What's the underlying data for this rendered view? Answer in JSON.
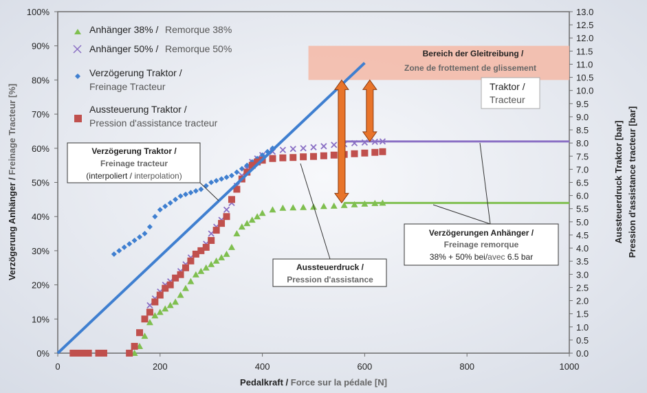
{
  "chart_data": {
    "type": "scatter",
    "x_axis": {
      "title_de": "Pedalkraft",
      "title_fr": "Force sur la pédale [N]",
      "title_sep": "/",
      "range": [
        0,
        1000
      ],
      "ticks": [
        "0",
        "200",
        "400",
        "600",
        "800",
        "1000"
      ]
    },
    "y_left": {
      "title_de": "Verzögerung Anhänger /",
      "title_fr": "Freinage Tracteur [%]",
      "range": [
        0,
        100
      ],
      "ticks": [
        "0%",
        "10%",
        "20%",
        "30%",
        "40%",
        "50%",
        "60%",
        "70%",
        "80%",
        "90%",
        "100%"
      ]
    },
    "y_right": {
      "title_de": "Aussteuerdruck Traktor  [bar]",
      "title_fr": "Pression d'assistance tracteur  [bar]",
      "range": [
        0,
        13
      ],
      "ticks": [
        "0.0",
        "0.5",
        "1.0",
        "1.5",
        "2.0",
        "2.5",
        "3.0",
        "3.5",
        "4.0",
        "4.5",
        "5.0",
        "5.5",
        "6.0",
        "6.5",
        "7.0",
        "7.5",
        "8.0",
        "8.5",
        "9.0",
        "9.5",
        "10.0",
        "10.5",
        "11.0",
        "11.5",
        "12.0",
        "12.5",
        "13.0"
      ]
    },
    "legend": {
      "placement": "top-left",
      "entries": [
        {
          "de": "Anhänger 38% /",
          "fr": "Remorque 38%",
          "color": "#7fbf4f",
          "marker": "triangle"
        },
        {
          "de": "Anhänger 50% /",
          "fr": "Remorque 50%",
          "color": "#8a6fc4",
          "marker": "x"
        },
        {
          "de": "Verzögerung Traktor /",
          "fr": "Freinage Tracteur",
          "color": "#3f7fd0",
          "marker": "diamond"
        },
        {
          "de": "Aussteuerung Traktor /",
          "fr": "Pression d'assistance tracteur",
          "color": "#c0504d",
          "marker": "square"
        }
      ]
    },
    "series": [
      {
        "name": "Anhänger 38% / Remorque 38%",
        "axis": "left",
        "color": "#7fbf4f",
        "marker": "triangle",
        "x": [
          150,
          160,
          170,
          180,
          190,
          200,
          210,
          220,
          230,
          240,
          250,
          260,
          270,
          280,
          290,
          300,
          310,
          320,
          330,
          340,
          350,
          360,
          370,
          380,
          390,
          400,
          420,
          440,
          460,
          480,
          500,
          520,
          540,
          560,
          580,
          600,
          620,
          635
        ],
        "y": [
          0,
          2,
          5,
          9,
          11,
          12,
          13,
          14,
          15,
          17,
          19,
          21,
          23,
          24,
          25,
          26,
          27,
          28,
          29,
          31,
          35,
          37,
          38,
          39,
          40,
          41,
          42,
          42.5,
          42.6,
          42.7,
          42.8,
          43,
          43.1,
          43.3,
          43.5,
          43.7,
          43.9,
          44
        ]
      },
      {
        "name": "Anhänger 50% / Remorque 50%",
        "axis": "left",
        "color": "#8a6fc4",
        "marker": "x",
        "x": [
          140,
          150,
          160,
          170,
          180,
          190,
          200,
          210,
          220,
          230,
          240,
          250,
          260,
          270,
          280,
          290,
          300,
          310,
          320,
          330,
          340,
          350,
          360,
          370,
          380,
          390,
          400,
          420,
          440,
          460,
          480,
          500,
          520,
          540,
          560,
          580,
          600,
          620,
          635
        ],
        "y": [
          0,
          2,
          6,
          10,
          14,
          16,
          18,
          20,
          21,
          22,
          24,
          26,
          28,
          29,
          30,
          32,
          35,
          37,
          39,
          42,
          44,
          49,
          52,
          54,
          56,
          57,
          58,
          59,
          59.5,
          59.8,
          60,
          60.3,
          60.6,
          61,
          61.2,
          61.5,
          61.7,
          61.9,
          62
        ]
      },
      {
        "name": "Verzögerung Traktor / Freinage Tracteur",
        "axis": "left",
        "color": "#3f7fd0",
        "marker": "diamond",
        "x": [
          110,
          120,
          130,
          140,
          150,
          160,
          170,
          180,
          190,
          200,
          210,
          220,
          230,
          240,
          250,
          260,
          270,
          280,
          290,
          300,
          310,
          320,
          330,
          340,
          350,
          360,
          370,
          380,
          390,
          400,
          410,
          420
        ],
        "y": [
          29,
          30,
          31,
          32,
          33,
          34,
          35,
          37,
          40,
          42,
          43,
          44,
          45,
          46,
          46.5,
          47,
          47.5,
          48,
          49,
          50,
          50.5,
          51,
          51.5,
          52,
          53,
          54,
          55,
          56,
          57,
          58,
          59,
          60
        ]
      },
      {
        "name": "Aussteuerung Traktor / Pression d'assistance tracteur",
        "axis": "left",
        "color": "#c0504d",
        "marker": "square",
        "x": [
          30,
          40,
          50,
          60,
          80,
          90,
          140,
          150,
          160,
          170,
          180,
          190,
          200,
          210,
          220,
          230,
          240,
          250,
          260,
          270,
          280,
          290,
          300,
          310,
          320,
          330,
          340,
          350,
          360,
          370,
          380,
          390,
          400,
          420,
          440,
          460,
          480,
          500,
          520,
          540,
          560,
          580,
          600,
          620,
          635
        ],
        "y": [
          0,
          0,
          0,
          0,
          0,
          0,
          0,
          2,
          6,
          10,
          12,
          15,
          17,
          19,
          20,
          22,
          23,
          25,
          27,
          29,
          30,
          31,
          33,
          36,
          38,
          40,
          45,
          48,
          51,
          53,
          55,
          56,
          56.5,
          57,
          57.2,
          57.3,
          57.5,
          57.6,
          57.8,
          58,
          58.2,
          58.4,
          58.6,
          58.8,
          59
        ]
      }
    ],
    "interpolation_line": {
      "x": [
        0,
        600
      ],
      "y": [
        0,
        85
      ],
      "color": "#3f7fd0"
    },
    "ref_lines": [
      {
        "x": [
          560,
          1000
        ],
        "y": 62,
        "color": "#8a6fc4"
      },
      {
        "x": [
          560,
          1000
        ],
        "y": 44,
        "color": "#7fbf4f"
      }
    ],
    "sliding_zone": {
      "y": [
        80,
        90
      ],
      "label_de": "Bereich der Gleitreibung /",
      "label_fr": "Zone de frottement de glissement"
    },
    "arrows": [
      {
        "x": 555,
        "y": [
          44,
          80
        ]
      },
      {
        "x": 610,
        "y": [
          62,
          80
        ]
      }
    ],
    "annotations": {
      "traktor": {
        "de": "Traktor /",
        "fr": "Tracteur"
      },
      "verz_traktor": {
        "line1": "Verzögerung Traktor /",
        "line2": "Freinage tracteur",
        "line3a": "(interpoliert /",
        "line3b": "interpolation)"
      },
      "aussteuer": {
        "line1": "Aussteuerdruck /",
        "line2": "Pression d'assistance"
      },
      "verz_anh": {
        "line1": "Verzögerungen Anhänger /",
        "line2": "Freinage remorque",
        "line3a": "38% + 50% bei/",
        "line3b": "avec",
        "line3c": " 6.5 bar"
      }
    }
  }
}
